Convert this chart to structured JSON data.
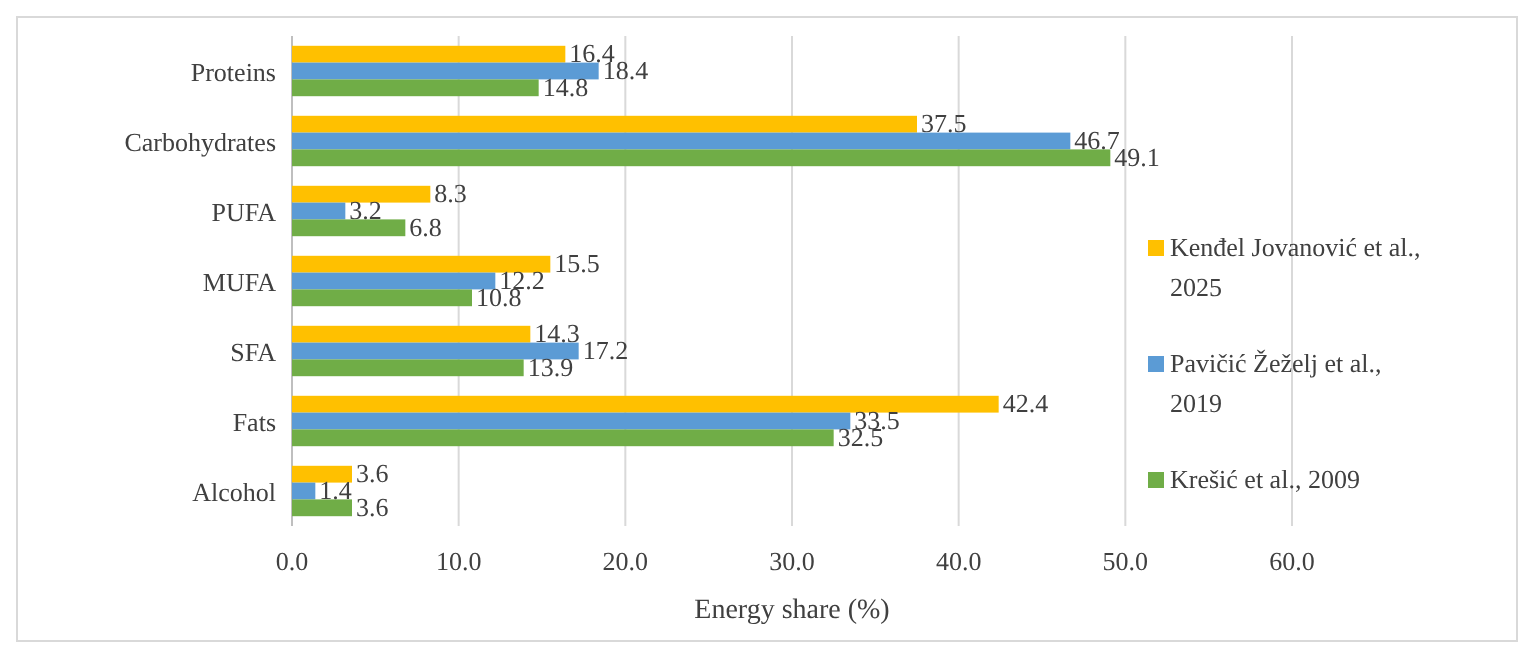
{
  "chart_data": {
    "type": "bar",
    "orientation": "horizontal",
    "xlabel": "Energy share (%)",
    "categories": [
      "Proteins",
      "Carbohydrates",
      "PUFA",
      "MUFA",
      "SFA",
      "Fats",
      "Alcohol"
    ],
    "series": [
      {
        "name": "Kenđel Jovanović et al., 2025",
        "color": "#ffc000",
        "values": [
          16.4,
          37.5,
          8.3,
          15.5,
          14.3,
          42.4,
          3.6
        ]
      },
      {
        "name": "Pavičić Žeželj et al., 2019",
        "color": "#5b9bd5",
        "values": [
          18.4,
          46.7,
          3.2,
          12.2,
          17.2,
          33.5,
          1.4
        ]
      },
      {
        "name": "Krešić et al., 2009",
        "color": "#70ad47",
        "values": [
          14.8,
          49.1,
          6.8,
          10.8,
          13.9,
          32.5,
          3.6
        ]
      }
    ],
    "xlim": [
      0,
      60
    ],
    "xticks": [
      {
        "value": 0,
        "label": "0.0"
      },
      {
        "value": 10,
        "label": "10.0"
      },
      {
        "value": 20,
        "label": "20.0"
      },
      {
        "value": 30,
        "label": "30.0"
      },
      {
        "value": 40,
        "label": "40.0"
      },
      {
        "value": 50,
        "label": "50.0"
      },
      {
        "value": 60,
        "label": "60.0"
      }
    ],
    "grid": "x",
    "legend": "right",
    "data_labels": true
  }
}
